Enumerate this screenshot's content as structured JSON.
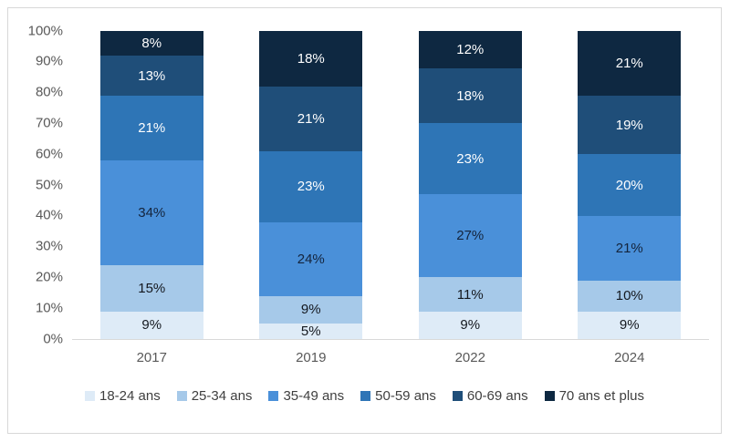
{
  "chart_data": {
    "type": "bar",
    "stacked": true,
    "percent_stacked": true,
    "unit": "%",
    "categories": [
      "2017",
      "2019",
      "2022",
      "2024"
    ],
    "series": [
      {
        "name": "18-24 ans",
        "color": "#deebf7",
        "label_color": "#14181f",
        "values": [
          9,
          5,
          9,
          9
        ]
      },
      {
        "name": "25-34 ans",
        "color": "#a6c9e9",
        "label_color": "#14181f",
        "values": [
          15,
          9,
          11,
          10
        ]
      },
      {
        "name": "35-49 ans",
        "color": "#4a90d9",
        "label_color": "#14243c",
        "values": [
          34,
          24,
          27,
          21
        ]
      },
      {
        "name": "50-59 ans",
        "color": "#2e75b6",
        "label_color": "#ffffff",
        "values": [
          21,
          23,
          23,
          20
        ]
      },
      {
        "name": "60-69 ans",
        "color": "#1f4e79",
        "label_color": "#ffffff",
        "values": [
          13,
          21,
          18,
          19
        ]
      },
      {
        "name": "70 ans et plus",
        "color": "#0e2841",
        "label_color": "#ffffff",
        "values": [
          8,
          18,
          12,
          21
        ]
      }
    ],
    "y_ticks": [
      "0%",
      "10%",
      "20%",
      "30%",
      "40%",
      "50%",
      "60%",
      "70%",
      "80%",
      "90%",
      "100%"
    ],
    "ylim": [
      0,
      100
    ],
    "grid": false,
    "legend_position": "bottom",
    "axis_label_color": "#595959",
    "legend_text_color": "#3f3f3f",
    "axis_line_color": "#d9d9d9",
    "frame_border_color": "#d8d8d8"
  }
}
